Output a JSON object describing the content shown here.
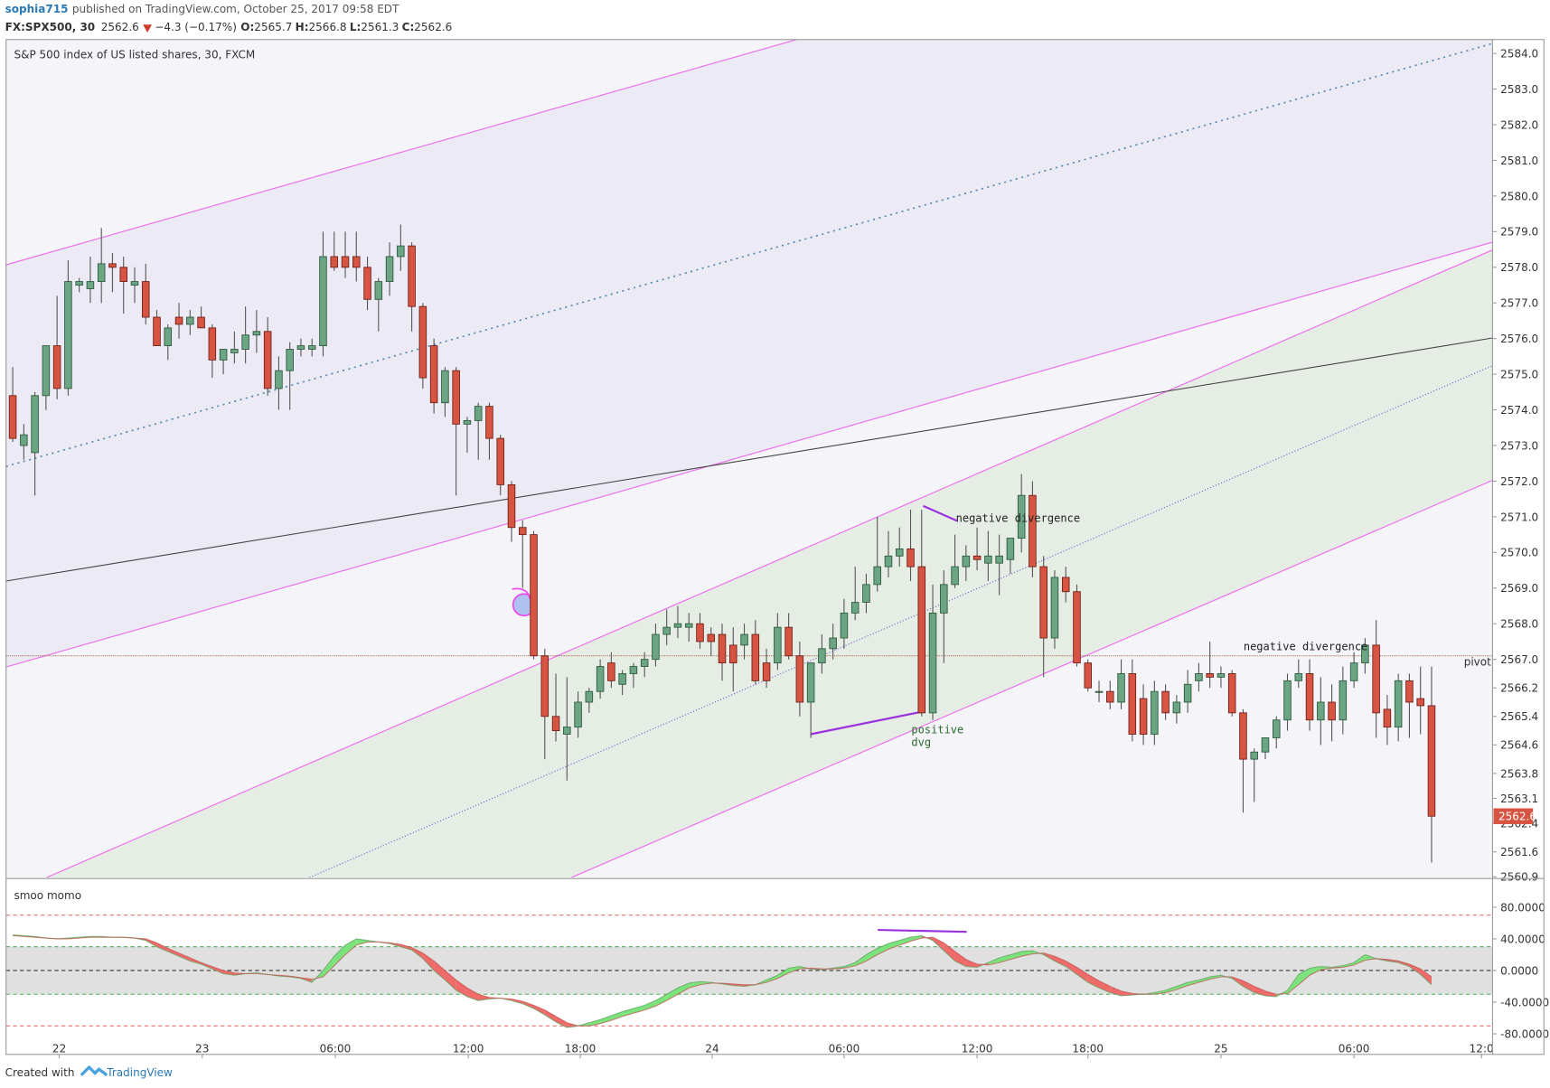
{
  "header": {
    "author": "sophia715",
    "published": "published on TradingView.com, October 25, 2017 09:58 EDT",
    "symbol": "FX:SPX500, 30",
    "last": "2562.6",
    "change": "−4.3 (−0.17%)",
    "open_label": "O:",
    "open": "2565.7",
    "high_label": "H:",
    "high": "2566.8",
    "low_label": "L:",
    "low": "2561.3",
    "close_label": "C:",
    "close": "2562.6"
  },
  "chart_data": [
    {
      "type": "candlestick",
      "title": "S&P 500 index of US listed shares, 30, FXCM",
      "up_color": "#6ba583",
      "down_color": "#d75442",
      "open": [
        2574.4,
        2573.0,
        2572.8,
        2574.4,
        2575.8,
        2574.6,
        2577.5,
        2577.4,
        2577.6,
        2578.1,
        2578.0,
        2577.5,
        2577.6,
        2576.6,
        2575.8,
        2576.6,
        2576.4,
        2576.6,
        2576.3,
        2575.4,
        2575.6,
        2575.7,
        2576.1,
        2576.2,
        2574.6,
        2575.1,
        2575.7,
        2575.7,
        2575.8,
        2578.3,
        2578.3,
        2578.3,
        2578.0,
        2577.1,
        2577.6,
        2578.3,
        2578.6,
        2576.9,
        2575.8,
        2574.2,
        2575.1,
        2573.6,
        2573.7,
        2574.1,
        2573.2,
        2571.9,
        2570.7,
        2570.5,
        2567.1,
        2565.4,
        2564.9,
        2565.1,
        2565.8,
        2566.1,
        2566.9,
        2566.3,
        2566.6,
        2566.8,
        2567.0,
        2567.7,
        2567.9,
        2567.9,
        2568.0,
        2567.7,
        2567.7,
        2567.4,
        2567.4,
        2567.7,
        2566.9,
        2566.9,
        2567.9,
        2567.1,
        2565.8,
        2566.9,
        2567.3,
        2567.6,
        2568.3,
        2568.6,
        2569.1,
        2569.6,
        2569.9,
        2570.1,
        2569.6,
        2565.5,
        2568.3,
        2569.1,
        2569.6,
        2569.9,
        2569.7,
        2569.7,
        2569.8,
        2570.4,
        2571.6,
        2569.6,
        2567.6,
        2569.3,
        2568.9,
        2566.9,
        2566.1,
        2566.1,
        2565.8,
        2566.6,
        2565.9,
        2564.9,
        2566.1,
        2565.5,
        2565.8,
        2566.4,
        2566.6,
        2566.5,
        2566.6,
        2565.5,
        2564.2,
        2564.4,
        2564.8,
        2565.3,
        2566.4,
        2566.6,
        2565.3,
        2565.8,
        2565.3,
        2566.4,
        2566.9,
        2567.4,
        2565.6,
        2565.1,
        2566.4,
        2565.9,
        2565.7
      ],
      "high": [
        2575.2,
        2573.6,
        2574.5,
        2575.8,
        2577.2,
        2578.2,
        2577.7,
        2578.3,
        2579.1,
        2578.4,
        2578.3,
        2578.0,
        2578.1,
        2576.8,
        2576.4,
        2577.0,
        2576.8,
        2576.9,
        2576.4,
        2575.6,
        2576.2,
        2576.9,
        2576.8,
        2576.6,
        2575.5,
        2575.9,
        2576.0,
        2576.0,
        2579.0,
        2579.0,
        2579.0,
        2579.0,
        2578.3,
        2577.7,
        2578.7,
        2579.2,
        2578.7,
        2577.0,
        2576.0,
        2575.2,
        2575.2,
        2573.8,
        2574.2,
        2574.2,
        2573.3,
        2572.0,
        2570.9,
        2570.6,
        2567.3,
        2566.6,
        2566.5,
        2566.1,
        2566.2,
        2567.0,
        2567.2,
        2566.7,
        2566.9,
        2567.2,
        2568.0,
        2568.4,
        2568.5,
        2568.3,
        2568.3,
        2567.9,
        2568.0,
        2567.9,
        2568.0,
        2568.1,
        2567.3,
        2568.3,
        2568.3,
        2567.5,
        2566.9,
        2567.7,
        2568.0,
        2568.7,
        2569.6,
        2569.4,
        2571.0,
        2570.6,
        2570.7,
        2571.2,
        2571.2,
        2569.1,
        2569.5,
        2570.5,
        2570.2,
        2570.7,
        2570.6,
        2570.5,
        2570.3,
        2572.2,
        2572.0,
        2569.9,
        2569.5,
        2569.6,
        2569.1,
        2567.0,
        2566.4,
        2566.4,
        2567.0,
        2567.0,
        2566.3,
        2566.4,
        2566.3,
        2566.0,
        2566.7,
        2566.9,
        2567.5,
        2566.8,
        2566.7,
        2565.6,
        2564.5,
        2564.8,
        2565.4,
        2566.6,
        2567.0,
        2567.0,
        2566.5,
        2566.3,
        2566.8,
        2567.2,
        2567.6,
        2568.1,
        2566.0,
        2566.6,
        2566.6,
        2566.8,
        2566.8
      ],
      "low": [
        2573.1,
        2572.6,
        2571.6,
        2574.0,
        2574.3,
        2574.4,
        2577.3,
        2577.0,
        2577.0,
        2577.3,
        2576.7,
        2577.0,
        2576.4,
        2575.8,
        2575.4,
        2576.0,
        2576.1,
        2576.3,
        2574.9,
        2575.0,
        2575.3,
        2575.3,
        2575.6,
        2574.4,
        2574.0,
        2574.0,
        2575.5,
        2575.5,
        2575.5,
        2577.9,
        2577.7,
        2577.6,
        2576.8,
        2576.2,
        2577.2,
        2577.9,
        2576.2,
        2574.6,
        2573.9,
        2573.8,
        2571.6,
        2572.8,
        2572.6,
        2572.6,
        2571.6,
        2570.3,
        2569.0,
        2567.0,
        2564.2,
        2564.7,
        2563.6,
        2564.8,
        2565.5,
        2565.9,
        2566.2,
        2566.0,
        2566.2,
        2566.5,
        2566.8,
        2567.4,
        2567.6,
        2567.5,
        2567.3,
        2567.1,
        2566.4,
        2566.1,
        2567.0,
        2566.3,
        2566.2,
        2566.7,
        2567.0,
        2565.4,
        2564.8,
        2566.6,
        2567.0,
        2567.3,
        2568.1,
        2568.3,
        2568.9,
        2569.3,
        2569.6,
        2569.2,
        2565.4,
        2565.3,
        2566.9,
        2569.0,
        2569.2,
        2569.5,
        2569.2,
        2568.8,
        2569.4,
        2570.0,
        2569.3,
        2566.5,
        2567.3,
        2568.6,
        2566.8,
        2566.1,
        2565.8,
        2565.6,
        2565.6,
        2564.7,
        2564.6,
        2564.6,
        2565.3,
        2565.2,
        2565.5,
        2566.1,
        2566.2,
        2566.2,
        2565.4,
        2562.7,
        2563.0,
        2564.2,
        2564.5,
        2565.0,
        2566.2,
        2565.0,
        2564.6,
        2564.7,
        2564.9,
        2566.2,
        2566.6,
        2564.8,
        2564.6,
        2564.7,
        2564.8,
        2564.9,
        2561.3
      ],
      "close": [
        2573.2,
        2573.3,
        2574.4,
        2575.8,
        2574.6,
        2577.6,
        2577.6,
        2577.6,
        2578.1,
        2578.0,
        2577.6,
        2577.6,
        2576.6,
        2575.8,
        2576.3,
        2576.4,
        2576.6,
        2576.3,
        2575.4,
        2575.7,
        2575.7,
        2576.1,
        2576.2,
        2574.6,
        2575.1,
        2575.7,
        2575.8,
        2575.8,
        2578.3,
        2578.0,
        2578.0,
        2578.0,
        2577.1,
        2577.6,
        2578.3,
        2578.6,
        2576.9,
        2574.9,
        2574.2,
        2575.1,
        2573.6,
        2573.7,
        2574.1,
        2573.2,
        2571.9,
        2570.7,
        2570.5,
        2567.1,
        2565.4,
        2565.0,
        2565.1,
        2565.8,
        2566.1,
        2566.8,
        2566.4,
        2566.6,
        2566.8,
        2567.0,
        2567.7,
        2567.9,
        2568.0,
        2568.0,
        2567.5,
        2567.5,
        2566.9,
        2566.9,
        2567.7,
        2566.4,
        2566.4,
        2567.9,
        2567.1,
        2565.8,
        2566.9,
        2567.3,
        2567.6,
        2568.3,
        2568.6,
        2569.1,
        2569.6,
        2569.9,
        2570.1,
        2569.6,
        2565.5,
        2568.3,
        2569.1,
        2569.6,
        2569.9,
        2569.8,
        2569.9,
        2569.9,
        2570.4,
        2571.6,
        2569.6,
        2567.6,
        2569.3,
        2568.9,
        2566.9,
        2566.2,
        2566.1,
        2565.8,
        2566.6,
        2564.9,
        2564.9,
        2566.1,
        2565.5,
        2565.8,
        2566.3,
        2566.6,
        2566.5,
        2566.6,
        2565.5,
        2564.2,
        2564.4,
        2564.8,
        2565.3,
        2566.4,
        2566.6,
        2565.3,
        2565.8,
        2565.3,
        2566.4,
        2566.9,
        2567.4,
        2565.5,
        2565.1,
        2566.4,
        2565.8,
        2565.7,
        2562.6
      ],
      "xlim": [
        -0.6,
        133.5
      ],
      "xticks": [
        {
          "value": 4.2,
          "label": "22"
        },
        {
          "value": 17.1,
          "label": "23"
        },
        {
          "value": 29.1,
          "label": "06:00"
        },
        {
          "value": 41.1,
          "label": "12:00"
        },
        {
          "value": 51.2,
          "label": "18:00"
        },
        {
          "value": 63.1,
          "label": "24"
        },
        {
          "value": 75,
          "label": "06:00"
        },
        {
          "value": 87,
          "label": "12:00"
        },
        {
          "value": 97,
          "label": "18:00"
        },
        {
          "value": 109,
          "label": "25"
        },
        {
          "value": 121,
          "label": "06:00"
        },
        {
          "value": 132.5,
          "label": "12:0"
        }
      ],
      "ylim": [
        2560.88,
        2584.39
      ],
      "yticks": [
        {
          "value": 2584,
          "label": "2584.0"
        },
        {
          "value": 2583,
          "label": "2583.0"
        },
        {
          "value": 2582,
          "label": "2582.0"
        },
        {
          "value": 2581,
          "label": "2581.0"
        },
        {
          "value": 2580,
          "label": "2580.0"
        },
        {
          "value": 2579,
          "label": "2579.0"
        },
        {
          "value": 2578,
          "label": "2578.0"
        },
        {
          "value": 2577,
          "label": "2577.0"
        },
        {
          "value": 2576,
          "label": "2576.0"
        },
        {
          "value": 2575,
          "label": "2575.0"
        },
        {
          "value": 2574,
          "label": "2574.0"
        },
        {
          "value": 2573,
          "label": "2573.0"
        },
        {
          "value": 2572,
          "label": "2572.0"
        },
        {
          "value": 2571,
          "label": "2571.0"
        },
        {
          "value": 2570,
          "label": "2570.0"
        },
        {
          "value": 2569,
          "label": "2569.0"
        },
        {
          "value": 2568,
          "label": "2568.0"
        },
        {
          "value": 2567,
          "label": "2567.0"
        },
        {
          "value": 2566.2,
          "label": "2566.2"
        },
        {
          "value": 2565.4,
          "label": "2565.4"
        },
        {
          "value": 2564.6,
          "label": "2564.6"
        },
        {
          "value": 2563.8,
          "label": "2563.8"
        },
        {
          "value": 2563.1,
          "label": "2563.1"
        },
        {
          "value": 2562.4,
          "label": "2562.4"
        },
        {
          "value": 2561.6,
          "label": "2561.6"
        },
        {
          "value": 2560.9,
          "label": "2560.9"
        }
      ],
      "last_price": {
        "value": 2562.6,
        "label": "2562.6"
      },
      "pivot": {
        "value": 2567.1,
        "label": "pivot"
      },
      "annotations": [
        "negative divergence",
        "negative divergence",
        "positive",
        "dvg"
      ]
    },
    {
      "type": "oscillator",
      "title": "smoo momo",
      "up_fill": "#7be37b",
      "down_fill": "#f06a6a",
      "series": [
        {
          "color": "#5a9e5a",
          "values": [
            45,
            44,
            43,
            41,
            40,
            41,
            42,
            43,
            43,
            42,
            42,
            41,
            38,
            30,
            24,
            18,
            12,
            8,
            2,
            -4,
            -6,
            -4,
            -3,
            -5,
            -7,
            -8,
            -10,
            -15,
            0,
            18,
            32,
            40,
            38,
            36,
            34,
            30,
            26,
            15,
            0,
            -12,
            -25,
            -33,
            -38,
            -36,
            -35,
            -38,
            -42,
            -48,
            -56,
            -65,
            -72,
            -70,
            -66,
            -62,
            -57,
            -52,
            -48,
            -44,
            -38,
            -30,
            -22,
            -16,
            -14,
            -15,
            -17,
            -19,
            -20,
            -18,
            -12,
            -6,
            3,
            5,
            2,
            1,
            3,
            5,
            10,
            20,
            28,
            34,
            38,
            42,
            44,
            38,
            25,
            12,
            5,
            4,
            10,
            16,
            20,
            24,
            25,
            20,
            12,
            5,
            -5,
            -15,
            -22,
            -28,
            -32,
            -31,
            -30,
            -28,
            -25,
            -20,
            -15,
            -12,
            -8,
            -6,
            -10,
            -20,
            -28,
            -32,
            -33,
            -25,
            -5,
            3,
            5,
            4,
            6,
            10,
            20,
            15,
            12,
            10,
            5,
            -5,
            -18
          ]
        },
        {
          "color": "#c0504d",
          "values": [
            44,
            43,
            42,
            41,
            40,
            40,
            41,
            42,
            42,
            42,
            42,
            41,
            40,
            35,
            28,
            22,
            16,
            10,
            5,
            0,
            -3,
            -4,
            -4,
            -5,
            -6,
            -7,
            -9,
            -11,
            -8,
            6,
            20,
            32,
            36,
            36,
            35,
            33,
            29,
            22,
            12,
            0,
            -12,
            -22,
            -30,
            -34,
            -35,
            -36,
            -39,
            -44,
            -50,
            -58,
            -66,
            -70,
            -70,
            -67,
            -63,
            -58,
            -54,
            -50,
            -45,
            -38,
            -30,
            -22,
            -18,
            -16,
            -16,
            -17,
            -18,
            -18,
            -15,
            -10,
            -3,
            2,
            3,
            2,
            2,
            3,
            6,
            12,
            20,
            27,
            32,
            37,
            41,
            42,
            35,
            24,
            14,
            8,
            7,
            10,
            14,
            18,
            21,
            22,
            18,
            12,
            4,
            -5,
            -13,
            -20,
            -26,
            -29,
            -30,
            -30,
            -28,
            -24,
            -19,
            -15,
            -11,
            -8,
            -8,
            -13,
            -20,
            -26,
            -30,
            -29,
            -18,
            -6,
            1,
            3,
            4,
            7,
            13,
            15,
            14,
            12,
            8,
            2,
            -8
          ]
        }
      ],
      "ylim": [
        -106,
        115
      ],
      "yticks": [
        {
          "value": 80,
          "label": "80.0000"
        },
        {
          "value": 40,
          "label": "40.0000"
        },
        {
          "value": 0,
          "label": "0.0000"
        },
        {
          "value": -40,
          "label": "-40.0000"
        },
        {
          "value": -80,
          "label": "-80.0000"
        }
      ],
      "levels": [
        {
          "value": 70,
          "color": "#e57373"
        },
        {
          "value": 30,
          "color": "#4caf50"
        },
        {
          "value": 0,
          "color": "#333333"
        },
        {
          "value": -30,
          "color": "#4caf50"
        },
        {
          "value": -70,
          "color": "#e57373"
        }
      ],
      "band": [
        -30,
        30
      ]
    }
  ],
  "footer": {
    "created": "Created with",
    "brand": "TradingView"
  }
}
